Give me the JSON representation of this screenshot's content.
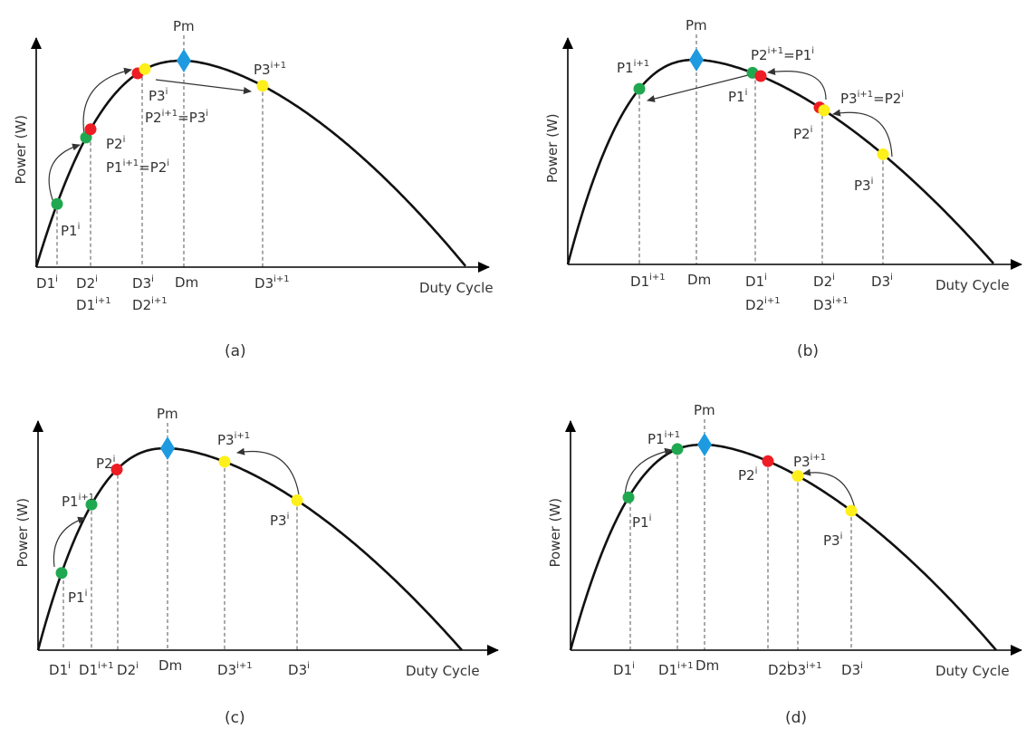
{
  "figure": {
    "x_axis_label": "Duty Cycle",
    "y_axis_label": "Power (W)",
    "peak_label": {
      "base": "P",
      "sub": "m"
    },
    "peak_duty_label": {
      "base": "D",
      "sub": "m"
    }
  },
  "colors": {
    "curve": "#111111",
    "axis": "#000000",
    "green": "#1fa84f",
    "red": "#ee1c24",
    "yellow": "#ffef1a",
    "peak": "#1e9be0",
    "dashed": "#555555"
  },
  "panels": [
    {
      "caption": "(a)",
      "labels": [
        {
          "base": "P",
          "sub": "1",
          "sup": "i"
        },
        {
          "base": "P",
          "sub": "2",
          "sup": "i"
        },
        {
          "base": "P",
          "sub": "1",
          "sup": "i+1",
          "eq": "=",
          "base2": "P",
          "sub2": "2",
          "sup2": "i"
        },
        {
          "base": "P",
          "sub": "3",
          "sup": "i"
        },
        {
          "base": "P",
          "sub": "2",
          "sup": "i+1",
          "eq": "=",
          "base2": "P",
          "sub2": "3",
          "sup2": "i"
        },
        {
          "base": "P",
          "sub": "3",
          "sup": "i+1"
        },
        {
          "base": "D",
          "sub": "1",
          "sup": "i"
        },
        {
          "base": "D",
          "sub": "2",
          "sup": "i"
        },
        {
          "base": "D",
          "sub": "1",
          "sup": "i+1"
        },
        {
          "base": "D",
          "sub": "3",
          "sup": "i"
        },
        {
          "base": "D",
          "sub": "2",
          "sup": "i+1"
        },
        {
          "base": "D",
          "sub": "3",
          "sup": "i+1"
        }
      ]
    },
    {
      "caption": "(b)",
      "labels": [
        {
          "base": "P",
          "sub": "1",
          "sup": "i+1"
        },
        {
          "base": "P",
          "sub": "2",
          "sup": "i+1",
          "eq": "=",
          "base2": "P",
          "sub2": "1",
          "sup2": "i"
        },
        {
          "base": "P",
          "sub": "1",
          "sup": "i"
        },
        {
          "base": "P",
          "sub": "3",
          "sup": "i+1",
          "eq": "=",
          "base2": "P",
          "sub2": "2",
          "sup2": "i"
        },
        {
          "base": "P",
          "sub": "2",
          "sup": "i"
        },
        {
          "base": "P",
          "sub": "3",
          "sup": "i"
        },
        {
          "base": "D",
          "sub": "1",
          "sup": "i+1"
        },
        {
          "base": "D",
          "sub": "1",
          "sup": "i"
        },
        {
          "base": "D",
          "sub": "2",
          "sup": "i+1"
        },
        {
          "base": "D",
          "sub": "2",
          "sup": "i"
        },
        {
          "base": "D",
          "sub": "3",
          "sup": "i+1"
        },
        {
          "base": "D",
          "sub": "3",
          "sup": "i"
        }
      ]
    },
    {
      "caption": "(c)",
      "labels": [
        {
          "base": "P",
          "sub": "1",
          "sup": "i"
        },
        {
          "base": "P",
          "sub": "1",
          "sup": "i+1"
        },
        {
          "base": "P",
          "sub": "2",
          "sup": "i"
        },
        {
          "base": "P",
          "sub": "3",
          "sup": "i+1"
        },
        {
          "base": "P",
          "sub": "3",
          "sup": "i"
        },
        {
          "base": "D",
          "sub": "1",
          "sup": "i"
        },
        {
          "base": "D",
          "sub": "1",
          "sup": "i+1"
        },
        {
          "base": "D",
          "sub": "2",
          "sup": "i"
        },
        {
          "base": "D",
          "sub": "3",
          "sup": "i+1"
        },
        {
          "base": "D",
          "sub": "3",
          "sup": "i"
        }
      ]
    },
    {
      "caption": "(d)",
      "labels": [
        {
          "base": "P",
          "sub": "1",
          "sup": "i+1"
        },
        {
          "base": "P",
          "sub": "1",
          "sup": "i"
        },
        {
          "base": "P",
          "sub": "2",
          "sup": "i"
        },
        {
          "base": "P",
          "sub": "3",
          "sup": "i+1"
        },
        {
          "base": "P",
          "sub": "3",
          "sup": "i"
        },
        {
          "base": "D",
          "sub": "1",
          "sup": "i"
        },
        {
          "base": "D",
          "sub": "1",
          "sup": "i+1"
        },
        {
          "base": "D",
          "sub": "2",
          "sup": "i"
        },
        {
          "base": "D",
          "sub": "3",
          "sup": "i+1"
        },
        {
          "base": "D",
          "sub": "3",
          "sup": "i"
        }
      ]
    }
  ]
}
